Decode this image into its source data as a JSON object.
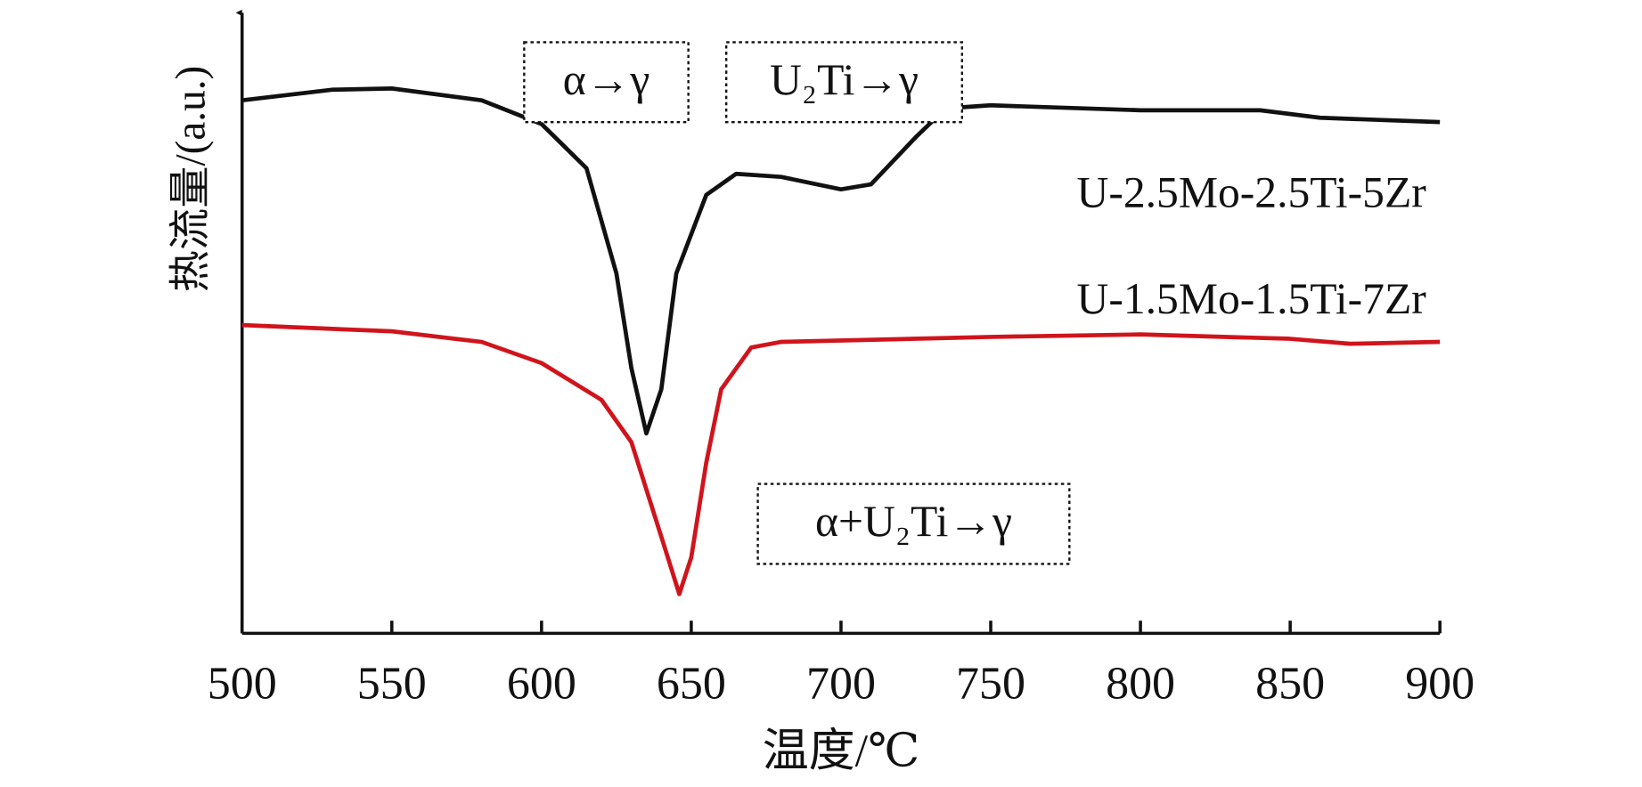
{
  "chart_data": {
    "type": "line",
    "xlabel": "温度/℃",
    "ylabel": "热流量/(a.u.)",
    "xlim": [
      500,
      900
    ],
    "xticks": [
      500,
      550,
      600,
      650,
      700,
      750,
      800,
      850,
      900
    ],
    "ylim": [
      0,
      10
    ],
    "series": [
      {
        "name": "U-2.5Mo-2.5Ti-5Zr",
        "color": "#111111",
        "x": [
          500,
          530,
          550,
          580,
          600,
          615,
          625,
          630,
          635,
          640,
          645,
          655,
          665,
          680,
          700,
          710,
          725,
          735,
          750,
          800,
          840,
          860,
          900
        ],
        "values": [
          8.56,
          8.73,
          8.75,
          8.56,
          8.18,
          7.47,
          5.78,
          4.26,
          3.21,
          3.92,
          5.78,
          7.04,
          7.38,
          7.33,
          7.13,
          7.21,
          7.97,
          8.43,
          8.48,
          8.4,
          8.4,
          8.28,
          8.21
        ]
      },
      {
        "name": "U-1.5Mo-1.5Ti-7Zr",
        "color": "#d0141c",
        "x": [
          500,
          550,
          580,
          600,
          620,
          630,
          640,
          646,
          650,
          655,
          660,
          670,
          680,
          750,
          800,
          850,
          870,
          900
        ],
        "values": [
          4.95,
          4.85,
          4.68,
          4.34,
          3.75,
          3.07,
          1.55,
          0.63,
          1.22,
          2.74,
          3.92,
          4.59,
          4.68,
          4.76,
          4.8,
          4.73,
          4.65,
          4.68
        ]
      }
    ],
    "annotations": [
      "α→γ",
      "U₂Ti→γ",
      "α+U₂Ti→γ"
    ]
  }
}
